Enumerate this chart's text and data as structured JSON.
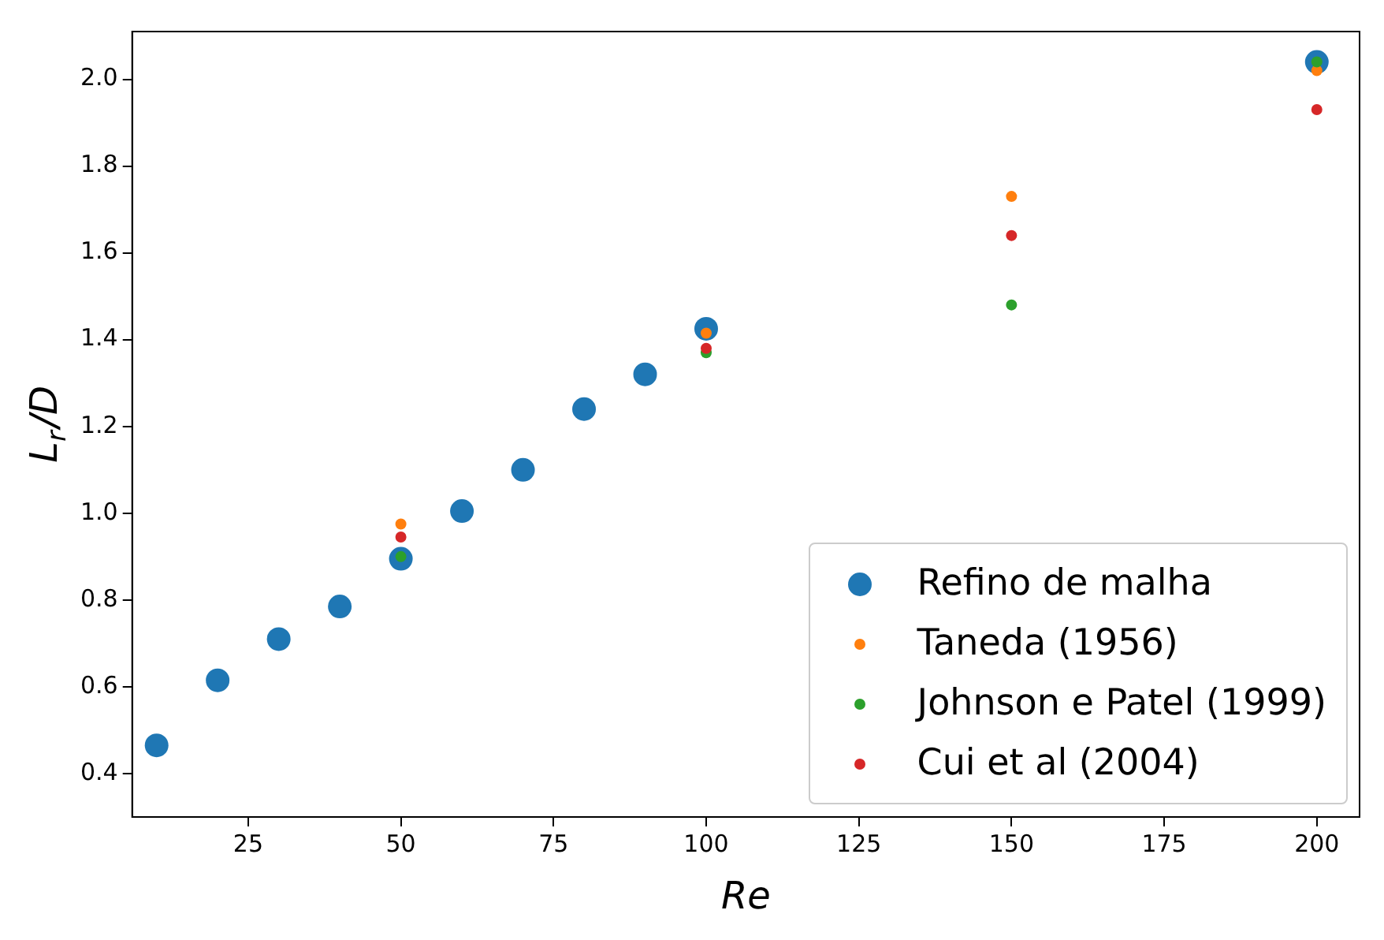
{
  "chart_data": {
    "type": "scatter",
    "xlabel": "Re",
    "ylabel": "L$_{r}$/D",
    "xlim": [
      6,
      207
    ],
    "xticks": [
      25,
      50,
      75,
      100,
      125,
      150,
      175,
      200
    ],
    "ylim": [
      0.3,
      2.11
    ],
    "yticks": [
      0.4,
      0.6,
      0.8,
      {
        "value": 1,
        "label": "1.0"
      },
      1.2,
      1.4,
      1.6,
      1.8,
      {
        "value": 2,
        "label": "2.0"
      }
    ],
    "grid": false,
    "legend": "bottom right",
    "marker": "circle",
    "series": [
      {
        "name": "Refino de malha",
        "color": "#1f77b4",
        "x": [
          10,
          20,
          30,
          40,
          50,
          60,
          70,
          80,
          90,
          100,
          200
        ],
        "values": [
          0.465,
          0.615,
          0.71,
          0.785,
          0.895,
          1.005,
          1.1,
          1.24,
          1.32,
          1.425,
          2.04
        ]
      },
      {
        "name": "Taneda (1956)",
        "color": "#ff7f0e",
        "x": [
          50,
          100,
          150,
          200
        ],
        "values": [
          0.975,
          1.415,
          1.73,
          2.02
        ]
      },
      {
        "name": "Johnson e Patel (1999)",
        "color": "#2ca02c",
        "x": [
          50,
          100,
          150,
          200
        ],
        "values": [
          0.9,
          1.37,
          1.48,
          2.04
        ]
      },
      {
        "name": "Cui et al (2004)",
        "color": "#d62728",
        "x": [
          50,
          100,
          150,
          200
        ],
        "values": [
          0.945,
          1.38,
          1.64,
          1.93
        ]
      }
    ]
  }
}
